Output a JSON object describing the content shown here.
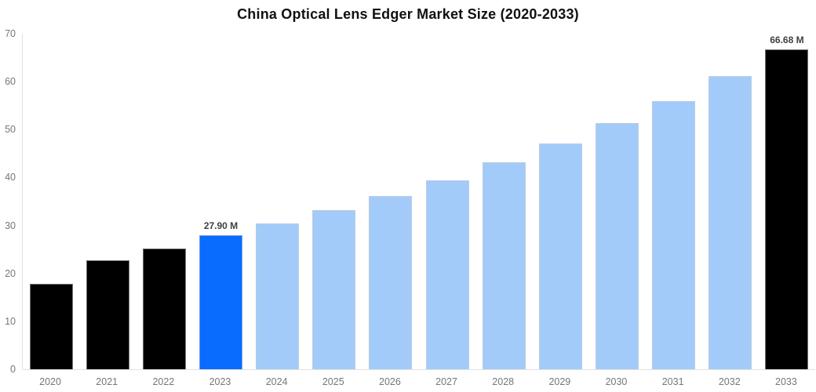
{
  "chart_data": {
    "type": "bar",
    "title": "China Optical Lens Edger Market Size (2020-2033)",
    "xlabel": "",
    "ylabel": "",
    "unit": "M",
    "ylim": [
      0,
      70
    ],
    "yticks": [
      0,
      10,
      20,
      30,
      40,
      50,
      60,
      70
    ],
    "grid": false,
    "legend": null,
    "categories": [
      "2020",
      "2021",
      "2022",
      "2023",
      "2024",
      "2025",
      "2026",
      "2027",
      "2028",
      "2029",
      "2030",
      "2031",
      "2032",
      "2033"
    ],
    "values": [
      17.8,
      22.8,
      25.2,
      27.9,
      30.4,
      33.2,
      36.2,
      39.5,
      43.1,
      47.1,
      51.4,
      56.0,
      61.1,
      66.68
    ],
    "value_labels": {
      "2023": "27.90 M",
      "2033": "66.68 M"
    },
    "bar_colors": [
      "#000000",
      "#000000",
      "#000000",
      "#0a6cff",
      "#a2cbfa",
      "#a2cbfa",
      "#a2cbfa",
      "#a2cbfa",
      "#a2cbfa",
      "#a2cbfa",
      "#a2cbfa",
      "#a2cbfa",
      "#a2cbfa",
      "#000000"
    ],
    "palette": {
      "historical_bar": "#000000",
      "highlight_bar": "#0a6cff",
      "forecast_bar": "#a2cbfa",
      "axis_line": "#e2e2e2",
      "tick_label": "#767676",
      "value_label": "#3f3f3f",
      "title": "#111111"
    }
  }
}
